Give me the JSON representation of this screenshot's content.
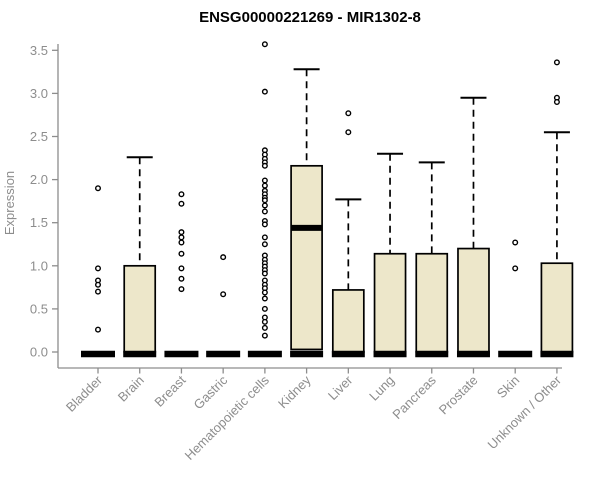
{
  "chart_data": {
    "type": "boxplot",
    "title": "ENSG00000221269 - MIR1302-8",
    "xlabel": "",
    "ylabel": "Expression",
    "ylim": [
      0,
      3.5
    ],
    "ytick_labels": [
      "0.0",
      "0.5",
      "1.0",
      "1.5",
      "2.0",
      "2.5",
      "3.0",
      "3.5"
    ],
    "ytick_values": [
      0,
      0.5,
      1.0,
      1.5,
      2.0,
      2.5,
      3.0,
      3.5
    ],
    "grid": "off",
    "legend": "none",
    "categories": [
      "Bladder",
      "Brain",
      "Breast",
      "Gastric",
      "Hematopoietic cells",
      "Kidney",
      "Liver",
      "Lung",
      "Pancreas",
      "Prostate",
      "Skin",
      "Unknown / Other"
    ],
    "boxes": [
      {
        "category": "Bladder",
        "whisker_low": 0,
        "q1": 0,
        "median": 0,
        "q3": 0,
        "whisker_high": 0,
        "outliers": [
          1.9,
          0.97,
          0.83,
          0.78,
          0.7,
          0.26
        ]
      },
      {
        "category": "Brain",
        "whisker_low": 0,
        "q1": 0,
        "median": 0,
        "q3": 1.0,
        "whisker_high": 2.26,
        "outliers": []
      },
      {
        "category": "Breast",
        "whisker_low": 0,
        "q1": 0,
        "median": 0,
        "q3": 0,
        "whisker_high": 0,
        "outliers": [
          1.83,
          1.72,
          1.39,
          1.33,
          1.27,
          1.14,
          0.97,
          0.85,
          0.73
        ]
      },
      {
        "category": "Gastric",
        "whisker_low": 0,
        "q1": 0,
        "median": 0,
        "q3": 0,
        "whisker_high": 0,
        "outliers": [
          1.1,
          0.67
        ]
      },
      {
        "category": "Hematopoietic cells",
        "whisker_low": 0,
        "q1": 0,
        "median": 0,
        "q3": 0,
        "whisker_high": 0,
        "outliers": [
          3.57,
          3.02,
          2.34,
          2.29,
          2.24,
          2.2,
          2.16,
          1.99,
          1.93,
          1.87,
          1.83,
          1.79,
          1.76,
          1.7,
          1.63,
          1.52,
          1.48,
          1.33,
          1.25,
          1.12,
          1.07,
          1.03,
          0.99,
          0.95,
          0.91,
          0.83,
          0.78,
          0.74,
          0.69,
          0.62,
          0.5,
          0.4,
          0.35,
          0.28,
          0.19
        ]
      },
      {
        "category": "Kidney",
        "whisker_low": 0,
        "q1": 0.03,
        "median": 1.44,
        "q3": 2.16,
        "whisker_high": 3.28,
        "outliers": []
      },
      {
        "category": "Liver",
        "whisker_low": 0,
        "q1": 0,
        "median": 0,
        "q3": 0.72,
        "whisker_high": 1.77,
        "outliers": [
          2.77,
          2.55
        ]
      },
      {
        "category": "Lung",
        "whisker_low": 0,
        "q1": 0,
        "median": 0,
        "q3": 1.14,
        "whisker_high": 2.3,
        "outliers": []
      },
      {
        "category": "Pancreas",
        "whisker_low": 0,
        "q1": 0,
        "median": 0,
        "q3": 1.14,
        "whisker_high": 2.2,
        "outliers": []
      },
      {
        "category": "Prostate",
        "whisker_low": 0,
        "q1": 0,
        "median": 0,
        "q3": 1.2,
        "whisker_high": 2.95,
        "outliers": []
      },
      {
        "category": "Skin",
        "whisker_low": 0,
        "q1": 0,
        "median": 0,
        "q3": 0,
        "whisker_high": 0,
        "outliers": [
          1.27,
          0.97
        ]
      },
      {
        "category": "Unknown / Other",
        "whisker_low": 0,
        "q1": 0,
        "median": 0,
        "q3": 1.03,
        "whisker_high": 2.55,
        "outliers": [
          3.36,
          2.95,
          2.9
        ]
      }
    ],
    "colors": {
      "box_fill": "#EDE7CA",
      "box_stroke": "#000000",
      "median": "#000000",
      "whisker": "#000000",
      "outlier_stroke": "#000000",
      "outlier_fill": "#ffffff",
      "axis": "#8d8d8d",
      "tick_label": "#8d8d8d",
      "title": "#000000",
      "background": "#ffffff"
    }
  }
}
